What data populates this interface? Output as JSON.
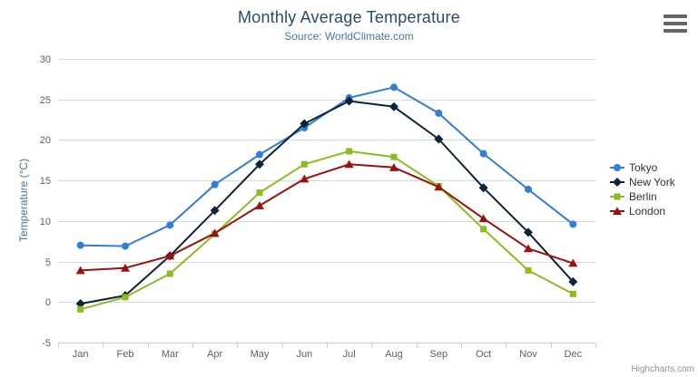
{
  "header": {
    "title": "Monthly Average Temperature",
    "subtitle": "Source: WorldClimate.com"
  },
  "y_axis": {
    "title": "Temperature (°C)"
  },
  "credits": "Highcharts.com",
  "export_menu": {
    "icon": "hamburger-icon"
  },
  "colors": {
    "title": "#274b6d",
    "subtitle": "#4d759e",
    "axis_labels": "#606060",
    "gridline": "#d8d8d8",
    "axis_line": "#c0d0e0",
    "legend_text": "#333333",
    "credits": "#909090"
  },
  "chart_data": {
    "type": "line",
    "title": "Monthly Average Temperature",
    "subtitle": "Source: WorldClimate.com",
    "xlabel": "",
    "ylabel": "Temperature (°C)",
    "ylim": [
      -5,
      30
    ],
    "y_ticks": [
      -5,
      0,
      5,
      10,
      15,
      20,
      25,
      30
    ],
    "grid": true,
    "legend_position": "right",
    "categories": [
      "Jan",
      "Feb",
      "Mar",
      "Apr",
      "May",
      "Jun",
      "Jul",
      "Aug",
      "Sep",
      "Oct",
      "Nov",
      "Dec"
    ],
    "series": [
      {
        "name": "Tokyo",
        "color": "#2f7ed8",
        "marker": "circle",
        "values": [
          7.0,
          6.9,
          9.5,
          14.5,
          18.2,
          21.5,
          25.2,
          26.5,
          23.3,
          18.3,
          13.9,
          9.6
        ]
      },
      {
        "name": "New York",
        "color": "#0d233a",
        "marker": "diamond",
        "values": [
          -0.2,
          0.8,
          5.7,
          11.3,
          17.0,
          22.0,
          24.8,
          24.1,
          20.1,
          14.1,
          8.6,
          2.5
        ]
      },
      {
        "name": "Berlin",
        "color": "#8bbc21",
        "marker": "square",
        "values": [
          -0.9,
          0.6,
          3.5,
          8.4,
          13.5,
          17.0,
          18.6,
          17.9,
          14.3,
          9.0,
          3.9,
          1.0
        ]
      },
      {
        "name": "London",
        "color": "#9e1010",
        "marker": "triangle",
        "values": [
          3.9,
          4.2,
          5.7,
          8.5,
          11.9,
          15.2,
          17.0,
          16.6,
          14.2,
          10.3,
          6.6,
          4.8
        ]
      }
    ]
  }
}
